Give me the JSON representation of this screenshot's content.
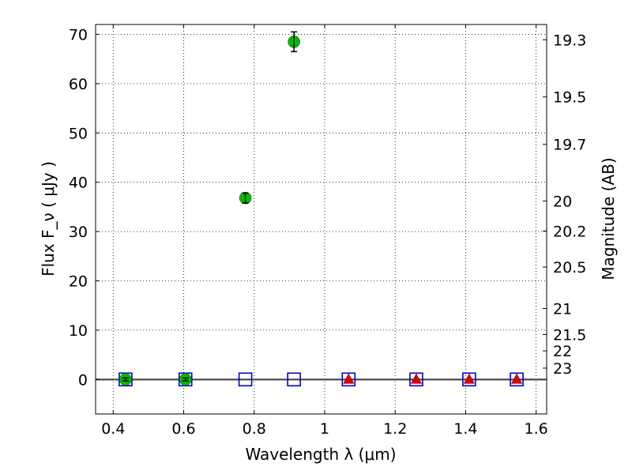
{
  "chart_data": {
    "type": "scatter",
    "title": "",
    "xlabel": "Wavelength  λ (μm)",
    "ylabel": "Flux  F_ν  ( μJy )",
    "y2label": "Magnitude (AB)",
    "xlim": [
      0.35,
      1.63
    ],
    "ylim": [
      -7,
      72
    ],
    "grid": true,
    "xticks": [
      0.4,
      0.6,
      0.8,
      1.0,
      1.2,
      1.4,
      1.6
    ],
    "xtick_labels": [
      "0.4",
      "0.6",
      "0.8",
      "1",
      "1.2",
      "1.4",
      "1.6"
    ],
    "yticks": [
      0,
      10,
      20,
      30,
      40,
      50,
      60,
      70
    ],
    "ytick_labels": [
      "0",
      "10",
      "20",
      "30",
      "40",
      "50",
      "60",
      "70"
    ],
    "y2ticks": [
      {
        "label": "19.3",
        "flux": 68.9
      },
      {
        "label": "19.5",
        "flux": 57.3
      },
      {
        "label": "19.7",
        "flux": 47.7
      },
      {
        "label": "20",
        "flux": 36.2
      },
      {
        "label": "20.2",
        "flux": 30.1
      },
      {
        "label": "20.5",
        "flux": 22.8
      },
      {
        "label": "21",
        "flux": 14.4
      },
      {
        "label": "21.5",
        "flux": 9.1
      },
      {
        "label": "22",
        "flux": 5.8
      },
      {
        "label": "23",
        "flux": 2.3
      }
    ],
    "baseline": 0,
    "series": [
      {
        "marker": "square",
        "color": "#0000cc",
        "points": [
          {
            "x": 0.435,
            "y": 0
          },
          {
            "x": 0.605,
            "y": 0
          },
          {
            "x": 0.775,
            "y": 0
          },
          {
            "x": 0.913,
            "y": 0
          },
          {
            "x": 1.068,
            "y": 0
          },
          {
            "x": 1.26,
            "y": 0
          },
          {
            "x": 1.41,
            "y": 0
          },
          {
            "x": 1.545,
            "y": 0
          }
        ]
      },
      {
        "marker": "circle",
        "color": "#00bb00",
        "points": [
          {
            "x": 0.435,
            "y": 0,
            "err": 0.3
          },
          {
            "x": 0.605,
            "y": 0,
            "err": 0.3
          },
          {
            "x": 0.775,
            "y": 36.8,
            "err": 1.0
          },
          {
            "x": 0.913,
            "y": 68.5,
            "err": 2.0
          }
        ]
      },
      {
        "marker": "triangle",
        "color": "#dd0000",
        "points": [
          {
            "x": 1.068,
            "y": 0
          },
          {
            "x": 1.26,
            "y": 0
          },
          {
            "x": 1.41,
            "y": 0
          },
          {
            "x": 1.545,
            "y": 0
          }
        ]
      }
    ]
  }
}
